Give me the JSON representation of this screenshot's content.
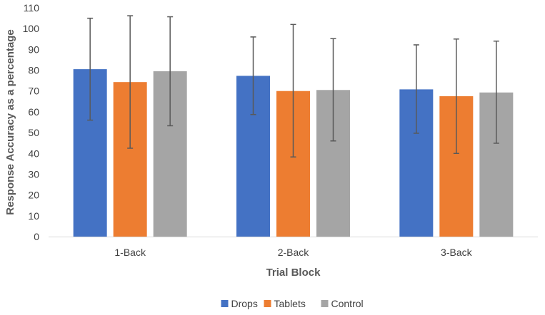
{
  "chart_data": {
    "type": "bar",
    "title": "",
    "xlabel": "Trial Block",
    "ylabel": "Response Accuracy as a percentage",
    "ylim": [
      0,
      110
    ],
    "yticks": [
      0,
      10,
      20,
      30,
      40,
      50,
      60,
      70,
      80,
      90,
      100,
      110
    ],
    "grid": false,
    "legend_position": "bottom",
    "categories": [
      "1-Back",
      "2-Back",
      "3-Back"
    ],
    "series": [
      {
        "name": "Drops",
        "color": "#4472c4",
        "values": [
          80.5,
          77.3,
          70.8
        ],
        "error_low": [
          56.0,
          58.7,
          49.7
        ],
        "error_high": [
          105.0,
          96.0,
          92.2
        ]
      },
      {
        "name": "Tablets",
        "color": "#ed7d31",
        "values": [
          74.3,
          70.0,
          67.5
        ],
        "error_low": [
          42.5,
          38.3,
          40.0
        ],
        "error_high": [
          106.2,
          102.0,
          95.0
        ]
      },
      {
        "name": "Control",
        "color": "#a5a5a5",
        "values": [
          79.5,
          70.5,
          69.3
        ],
        "error_low": [
          53.3,
          46.0,
          44.9
        ],
        "error_high": [
          105.7,
          95.2,
          94.0
        ]
      }
    ]
  }
}
